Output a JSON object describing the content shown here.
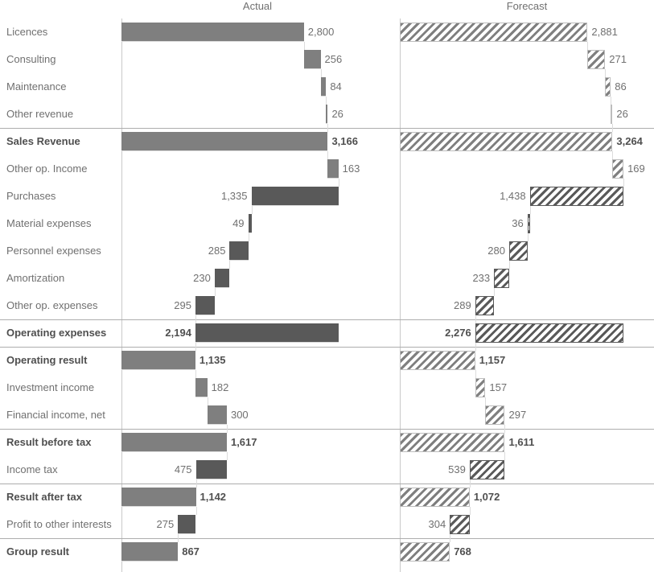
{
  "header": {
    "actual": "Actual",
    "forecast": "Forecast"
  },
  "colors": {
    "positive": "#7F7F7F",
    "negative": "#595959",
    "hatch_positive_border": "#BDBDBD",
    "axis": "#C9C9C9",
    "separator": "#ADADAD",
    "connector": "#DCDCDC",
    "label": "#707070",
    "label_bold": "#4F4F4F",
    "background": "#FFFFFF"
  },
  "chart_data": {
    "type": "bar",
    "variant": "horizontal-waterfall-comparison",
    "columns": [
      "Actual",
      "Forecast"
    ],
    "legend_position": "top",
    "grid": false,
    "value_format": "thousands-comma",
    "categories": [
      "Licences",
      "Consulting",
      "Maintenance",
      "Other revenue",
      "Sales Revenue",
      "Other op. Income",
      "Purchases",
      "Material expenses",
      "Personnel expenses",
      "Amortization",
      "Other op. expenses",
      "Operating expenses",
      "Operating result",
      "Investment income",
      "Financial income, net",
      "Result before tax",
      "Income tax",
      "Result after tax",
      "Profit to other interests",
      "Group result"
    ],
    "rows": [
      {
        "label": "Licences",
        "kind": "increase",
        "bold": false,
        "separator_above": false,
        "actual": 2800,
        "forecast": 2881
      },
      {
        "label": "Consulting",
        "kind": "increase",
        "bold": false,
        "separator_above": false,
        "actual": 256,
        "forecast": 271
      },
      {
        "label": "Maintenance",
        "kind": "increase",
        "bold": false,
        "separator_above": false,
        "actual": 84,
        "forecast": 86
      },
      {
        "label": "Other revenue",
        "kind": "increase",
        "bold": false,
        "separator_above": false,
        "actual": 26,
        "forecast": 26
      },
      {
        "label": "Sales Revenue",
        "kind": "total",
        "bold": true,
        "separator_above": true,
        "actual": 3166,
        "forecast": 3264
      },
      {
        "label": "Other op. Income",
        "kind": "increase",
        "bold": false,
        "separator_above": false,
        "actual": 163,
        "forecast": 169
      },
      {
        "label": "Purchases",
        "kind": "decrease",
        "bold": false,
        "separator_above": false,
        "actual": 1335,
        "forecast": 1438
      },
      {
        "label": "Material expenses",
        "kind": "decrease",
        "bold": false,
        "separator_above": false,
        "actual": 49,
        "forecast": 36
      },
      {
        "label": "Personnel expenses",
        "kind": "decrease",
        "bold": false,
        "separator_above": false,
        "actual": 285,
        "forecast": 280
      },
      {
        "label": "Amortization",
        "kind": "decrease",
        "bold": false,
        "separator_above": false,
        "actual": 230,
        "forecast": 233
      },
      {
        "label": "Other op. expenses",
        "kind": "decrease",
        "bold": false,
        "separator_above": false,
        "actual": 295,
        "forecast": 289
      },
      {
        "label": "Operating expenses",
        "kind": "total-negative",
        "bold": true,
        "separator_above": true,
        "actual": 2194,
        "forecast": 2276
      },
      {
        "label": "Operating result",
        "kind": "total",
        "bold": true,
        "separator_above": true,
        "actual": 1135,
        "forecast": 1157
      },
      {
        "label": "Investment income",
        "kind": "increase",
        "bold": false,
        "separator_above": false,
        "actual": 182,
        "forecast": 157
      },
      {
        "label": "Financial income, net",
        "kind": "increase",
        "bold": false,
        "separator_above": false,
        "actual": 300,
        "forecast": 297
      },
      {
        "label": "Result before tax",
        "kind": "total",
        "bold": true,
        "separator_above": true,
        "actual": 1617,
        "forecast": 1611
      },
      {
        "label": "Income tax",
        "kind": "decrease",
        "bold": false,
        "separator_above": false,
        "actual": 475,
        "forecast": 539
      },
      {
        "label": "Result after tax",
        "kind": "total",
        "bold": true,
        "separator_above": true,
        "actual": 1142,
        "forecast": 1072
      },
      {
        "label": "Profit to other interests",
        "kind": "decrease",
        "bold": false,
        "separator_above": false,
        "actual": 275,
        "forecast": 304
      },
      {
        "label": "Group result",
        "kind": "total",
        "bold": true,
        "separator_above": true,
        "actual": 867,
        "forecast": 768
      }
    ]
  }
}
